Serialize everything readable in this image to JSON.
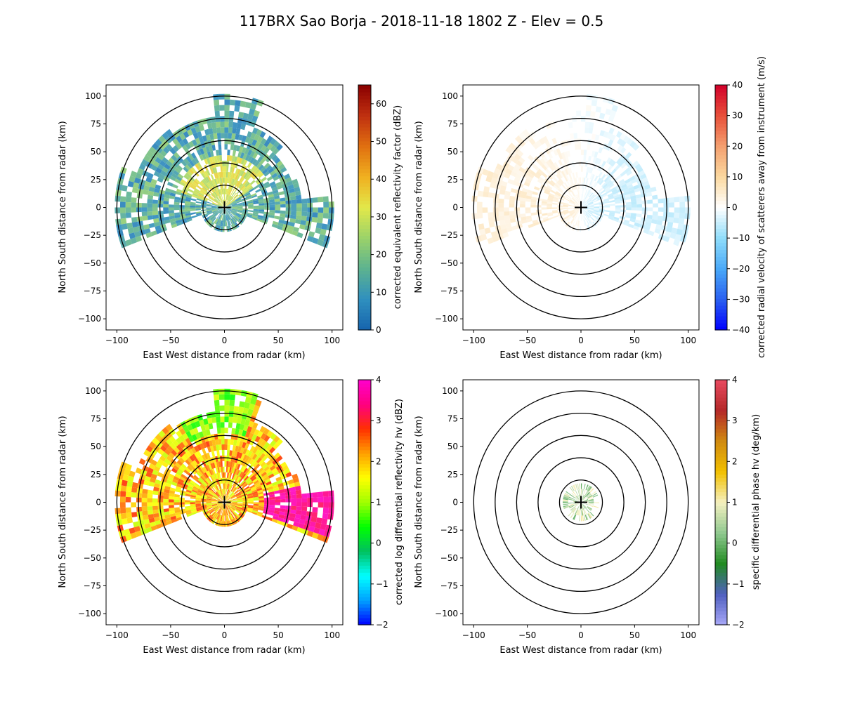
{
  "figure": {
    "title": "117BRX Sao Borja - 2018-11-18 1802 Z -  Elev = 0.5"
  },
  "chart_data": [
    {
      "type": "heatmap",
      "id": "reflectivity",
      "field": "corrected equivalent reflectivity factor",
      "xlabel": "East West distance from radar (km)",
      "ylabel": "North South distance from radar (km)",
      "xlim": [
        -110,
        110
      ],
      "ylim": [
        -110,
        110
      ],
      "xticks": [
        -100,
        -50,
        0,
        50,
        100
      ],
      "yticks": [
        -100,
        -75,
        -50,
        -25,
        0,
        25,
        50,
        75,
        100
      ],
      "range_rings_km": [
        20,
        40,
        60,
        80,
        100
      ],
      "colorbar": {
        "label": "corrected equivalent reflectivity factor (dBZ)",
        "vmin": 0,
        "vmax": 65,
        "ticks": [
          0,
          10,
          20,
          30,
          40,
          50,
          60
        ],
        "colormap": [
          "#1664ad",
          "#2f8fbf",
          "#5cb290",
          "#9ad26a",
          "#e2e84a",
          "#f0b020",
          "#e07010",
          "#c03010",
          "#8a0000"
        ]
      }
    },
    {
      "type": "heatmap",
      "id": "velocity",
      "field": "corrected radial velocity of scatterers away from instrument",
      "xlabel": "East West distance from radar (km)",
      "ylabel": "North South distance from radar (km)",
      "xlim": [
        -110,
        110
      ],
      "ylim": [
        -110,
        110
      ],
      "xticks": [
        -100,
        -50,
        0,
        50,
        100
      ],
      "yticks": [
        -100,
        -75,
        -50,
        -25,
        0,
        25,
        50,
        75,
        100
      ],
      "range_rings_km": [
        20,
        40,
        60,
        80,
        100
      ],
      "colorbar": {
        "label": "corrected radial velocity of scatterers away from instrument (m/s)",
        "vmin": -40,
        "vmax": 40,
        "ticks": [
          -40,
          -30,
          -20,
          -10,
          0,
          10,
          20,
          30,
          40
        ],
        "colormap": [
          "#0000ff",
          "#2a60f0",
          "#49a8f8",
          "#8fdcfa",
          "#ffffff",
          "#fbd9a0",
          "#f4a070",
          "#e8503a",
          "#d2002a"
        ]
      }
    },
    {
      "type": "heatmap",
      "id": "zdr",
      "field": "corrected log differential reflectivity hv",
      "xlabel": "East West distance from radar (km)",
      "ylabel": "North South distance from radar (km)",
      "xlim": [
        -110,
        110
      ],
      "ylim": [
        -110,
        110
      ],
      "xticks": [
        -100,
        -50,
        0,
        50,
        100
      ],
      "yticks": [
        -100,
        -75,
        -50,
        -25,
        0,
        25,
        50,
        75,
        100
      ],
      "range_rings_km": [
        20,
        40,
        60,
        80,
        100
      ],
      "colorbar": {
        "label": "corrected log differential reflectivity hv (dBZ)",
        "vmin": -2,
        "vmax": 4,
        "ticks": [
          -2,
          -1,
          0,
          1,
          2,
          3,
          4
        ],
        "colormap": [
          "#0000ff",
          "#00a0ff",
          "#00ffff",
          "#00c060",
          "#00ff00",
          "#a0ff00",
          "#ffff00",
          "#ffa000",
          "#ff3000",
          "#ff0080",
          "#ff00cc"
        ]
      }
    },
    {
      "type": "heatmap",
      "id": "kdp",
      "field": "specific differential phase hv",
      "xlabel": "East West distance from radar (km)",
      "ylabel": "North South distance from radar (km)",
      "xlim": [
        -110,
        110
      ],
      "ylim": [
        -110,
        110
      ],
      "xticks": [
        -100,
        -50,
        0,
        50,
        100
      ],
      "yticks": [
        -100,
        -75,
        -50,
        -25,
        0,
        25,
        50,
        75,
        100
      ],
      "range_rings_km": [
        20,
        40,
        60,
        80,
        100
      ],
      "colorbar": {
        "label": "specific differential phase hv (deg/km)",
        "vmin": -2,
        "vmax": 4,
        "ticks": [
          -2,
          -1,
          0,
          1,
          2,
          3,
          4
        ],
        "colormap": [
          "#a8a8f8",
          "#5060c0",
          "#228b22",
          "#8fc88f",
          "#f5f0c0",
          "#f2c000",
          "#d08a10",
          "#b42828",
          "#e84a5f"
        ]
      }
    }
  ]
}
